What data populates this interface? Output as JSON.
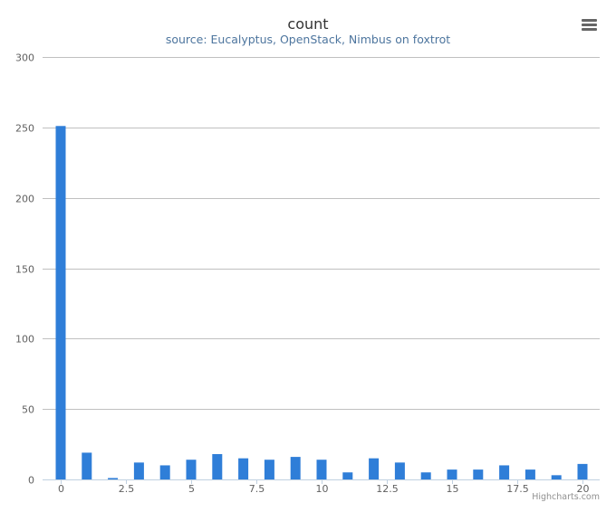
{
  "chart_data": {
    "type": "bar",
    "title": "count",
    "subtitle": "source: Eucalyptus, OpenStack, Nimbus on foxtrot",
    "x": [
      0,
      1,
      2,
      3,
      4,
      5,
      6,
      7,
      8,
      9,
      10,
      11,
      12,
      13,
      14,
      15,
      16,
      17,
      18,
      19,
      20
    ],
    "values": [
      251,
      19,
      1,
      12,
      10,
      14,
      18,
      15,
      14,
      16,
      14,
      5,
      15,
      12,
      5,
      7,
      7,
      10,
      7,
      3,
      11
    ],
    "xlim": [
      0,
      20
    ],
    "ylim": [
      0,
      300
    ],
    "x_ticks": [
      0,
      2.5,
      5,
      7.5,
      10,
      12.5,
      15,
      17.5,
      20
    ],
    "x_tick_labels": [
      "0",
      "2.5",
      "5",
      "7.5",
      "10",
      "12.5",
      "15",
      "17.5",
      "20"
    ],
    "y_ticks": [
      0,
      50,
      100,
      150,
      200,
      250,
      300
    ],
    "y_tick_labels": [
      "0",
      "50",
      "100",
      "150",
      "200",
      "250",
      "300"
    ],
    "grid": true,
    "legend": false,
    "color": "#2f7ed8",
    "xlabel": "",
    "ylabel": ""
  },
  "credits": "Highcharts.com",
  "menu_icon": "hamburger-menu-icon"
}
